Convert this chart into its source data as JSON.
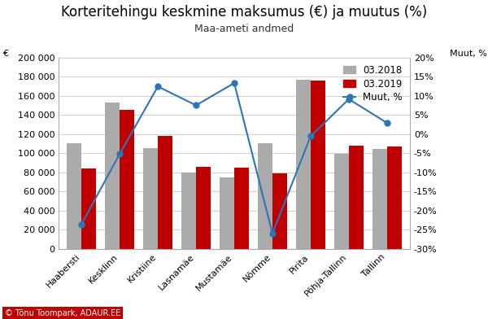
{
  "title": "Korteritehingu keskmine maksumus (€) ja muutus (%)",
  "subtitle": "Maa-ameti andmed",
  "categories": [
    "Haabersti",
    "Kesklinn",
    "Kristiine",
    "Lasnamäe",
    "Mustamäe",
    "Nõmme",
    "Pirita",
    "Põhja-Tallinn",
    "Tallinn"
  ],
  "bars_2018": [
    110000,
    153000,
    105000,
    80000,
    75000,
    110000,
    177000,
    99000,
    104000
  ],
  "bars_2019": [
    84000,
    145000,
    118000,
    86000,
    85000,
    79000,
    176000,
    108000,
    107000
  ],
  "muut_pct": [
    -23.6,
    -5.2,
    12.4,
    7.5,
    13.3,
    -26.0,
    -0.6,
    9.1,
    2.9
  ],
  "color_2018": "#ABABAB",
  "color_2019": "#C00000",
  "color_line": "#2E75B6",
  "ylabel_left": "€",
  "ylabel_right": "Muut, %",
  "ylim_left": [
    0,
    200000
  ],
  "ylim_right": [
    -30,
    20
  ],
  "yticks_left": [
    0,
    20000,
    40000,
    60000,
    80000,
    100000,
    120000,
    140000,
    160000,
    180000,
    200000
  ],
  "yticks_right": [
    -30,
    -25,
    -20,
    -15,
    -10,
    -5,
    0,
    5,
    10,
    15,
    20
  ],
  "legend_labels": [
    "03.2018",
    "03.2019",
    "Muut, %"
  ],
  "background_color": "#FFFFFF",
  "grid_color": "#D0D0D0",
  "title_fontsize": 12,
  "subtitle_fontsize": 9,
  "tick_fontsize": 8,
  "legend_fontsize": 8.5,
  "copyright_text": "© Tõnu Toompark, ADAUR.EE",
  "copyright_bg": "#C00000",
  "copyright_color": "#FFFFFF"
}
